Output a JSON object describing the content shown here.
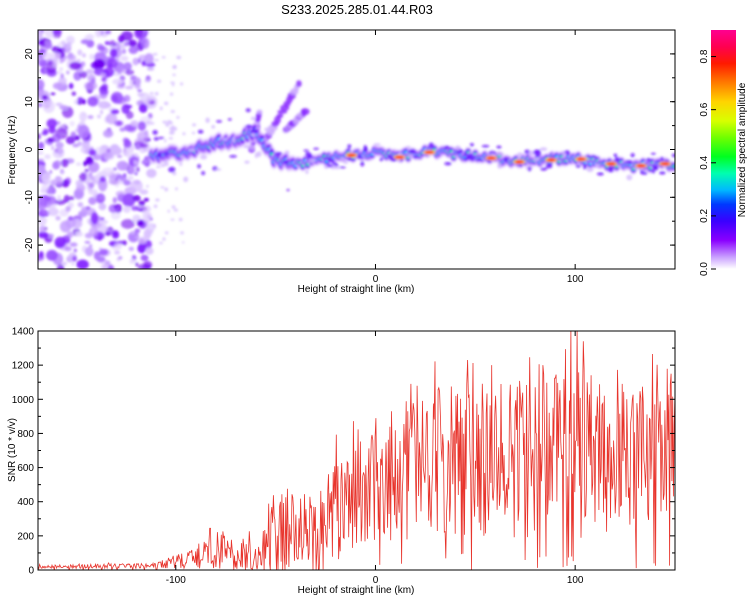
{
  "chart_data": [
    {
      "type": "heatmap",
      "title": "S233.2025.285.01.44.R03",
      "xlabel": "Height of straight line (km)",
      "ylabel": "Frequency (Hz)",
      "xlim": [
        -169,
        150
      ],
      "ylim": [
        -25,
        25
      ],
      "x_ticks": [
        -100,
        0,
        100
      ],
      "y_ticks": [
        20,
        10,
        0,
        -10,
        -20
      ],
      "colorbar": {
        "label": "Normalized spectral amplitude",
        "range": [
          0.0,
          0.9
        ],
        "ticks": [
          "0.0",
          "0.2",
          "0.4",
          "0.6",
          "0.8"
        ]
      },
      "noise_region_x": [
        -169,
        -112
      ],
      "ridge": [
        {
          "x": -112,
          "f": -1.5
        },
        {
          "x": -100,
          "f": -1.0
        },
        {
          "x": -90,
          "f": 0.0
        },
        {
          "x": -80,
          "f": 1.5
        },
        {
          "x": -70,
          "f": 2.0
        },
        {
          "x": -60,
          "f": 4.0
        },
        {
          "x": -50,
          "f": -2.5
        },
        {
          "x": -40,
          "f": -3.0
        },
        {
          "x": -25,
          "f": -2.0
        },
        {
          "x": -10,
          "f": -1.0
        },
        {
          "x": 0,
          "f": -0.5
        },
        {
          "x": 10,
          "f": -1.5
        },
        {
          "x": 25,
          "f": -0.5
        },
        {
          "x": 40,
          "f": -1.0
        },
        {
          "x": 55,
          "f": -1.5
        },
        {
          "x": 70,
          "f": -2.5
        },
        {
          "x": 85,
          "f": -2.0
        },
        {
          "x": 100,
          "f": -2.0
        },
        {
          "x": 115,
          "f": -3.0
        },
        {
          "x": 130,
          "f": -3.5
        },
        {
          "x": 150,
          "f": -3.0
        }
      ],
      "hot_spots": [
        {
          "x": -12,
          "f": -1.2
        },
        {
          "x": 12,
          "f": -1.6
        },
        {
          "x": 27,
          "f": -0.6
        },
        {
          "x": 58,
          "f": -1.8
        },
        {
          "x": 72,
          "f": -2.6
        },
        {
          "x": 88,
          "f": -2.2
        },
        {
          "x": 103,
          "f": -2.0
        },
        {
          "x": 118,
          "f": -3.0
        },
        {
          "x": 133,
          "f": -3.4
        },
        {
          "x": 145,
          "f": -3.0
        }
      ]
    },
    {
      "type": "line",
      "xlabel": "Height of straight line (km)",
      "ylabel": "SNR (10 * v/v)",
      "xlim": [
        -169,
        150
      ],
      "ylim": [
        0,
        1400
      ],
      "x_ticks": [
        -100,
        0,
        100
      ],
      "y_ticks": [
        0,
        200,
        400,
        600,
        800,
        1000,
        1200,
        1400
      ],
      "color": "#e8342c",
      "envelope": [
        {
          "x": -169,
          "base": 18,
          "amp": 10
        },
        {
          "x": -110,
          "base": 25,
          "amp": 15
        },
        {
          "x": -90,
          "base": 70,
          "amp": 60
        },
        {
          "x": -80,
          "base": 120,
          "amp": 110
        },
        {
          "x": -60,
          "base": 90,
          "amp": 90
        },
        {
          "x": -45,
          "base": 230,
          "amp": 260
        },
        {
          "x": -30,
          "base": 200,
          "amp": 230
        },
        {
          "x": -20,
          "base": 350,
          "amp": 300
        },
        {
          "x": -5,
          "base": 480,
          "amp": 330
        },
        {
          "x": 10,
          "base": 550,
          "amp": 380
        },
        {
          "x": 30,
          "base": 640,
          "amp": 440
        },
        {
          "x": 60,
          "base": 650,
          "amp": 450
        },
        {
          "x": 100,
          "base": 680,
          "amp": 520
        },
        {
          "x": 130,
          "base": 650,
          "amp": 420
        },
        {
          "x": 150,
          "base": 720,
          "amp": 380
        }
      ],
      "peaks": [
        {
          "x": 101,
          "y": 1400
        },
        {
          "x": 104,
          "y": 1340
        },
        {
          "x": 46,
          "y": 1230
        },
        {
          "x": 58,
          "y": 1200
        },
        {
          "x": 84,
          "y": 1200
        },
        {
          "x": 148,
          "y": 1150
        },
        {
          "x": 126,
          "y": 1000
        },
        {
          "x": 140,
          "y": 970
        },
        {
          "x": 16,
          "y": 930
        },
        {
          "x": 8,
          "y": 930
        }
      ]
    }
  ]
}
